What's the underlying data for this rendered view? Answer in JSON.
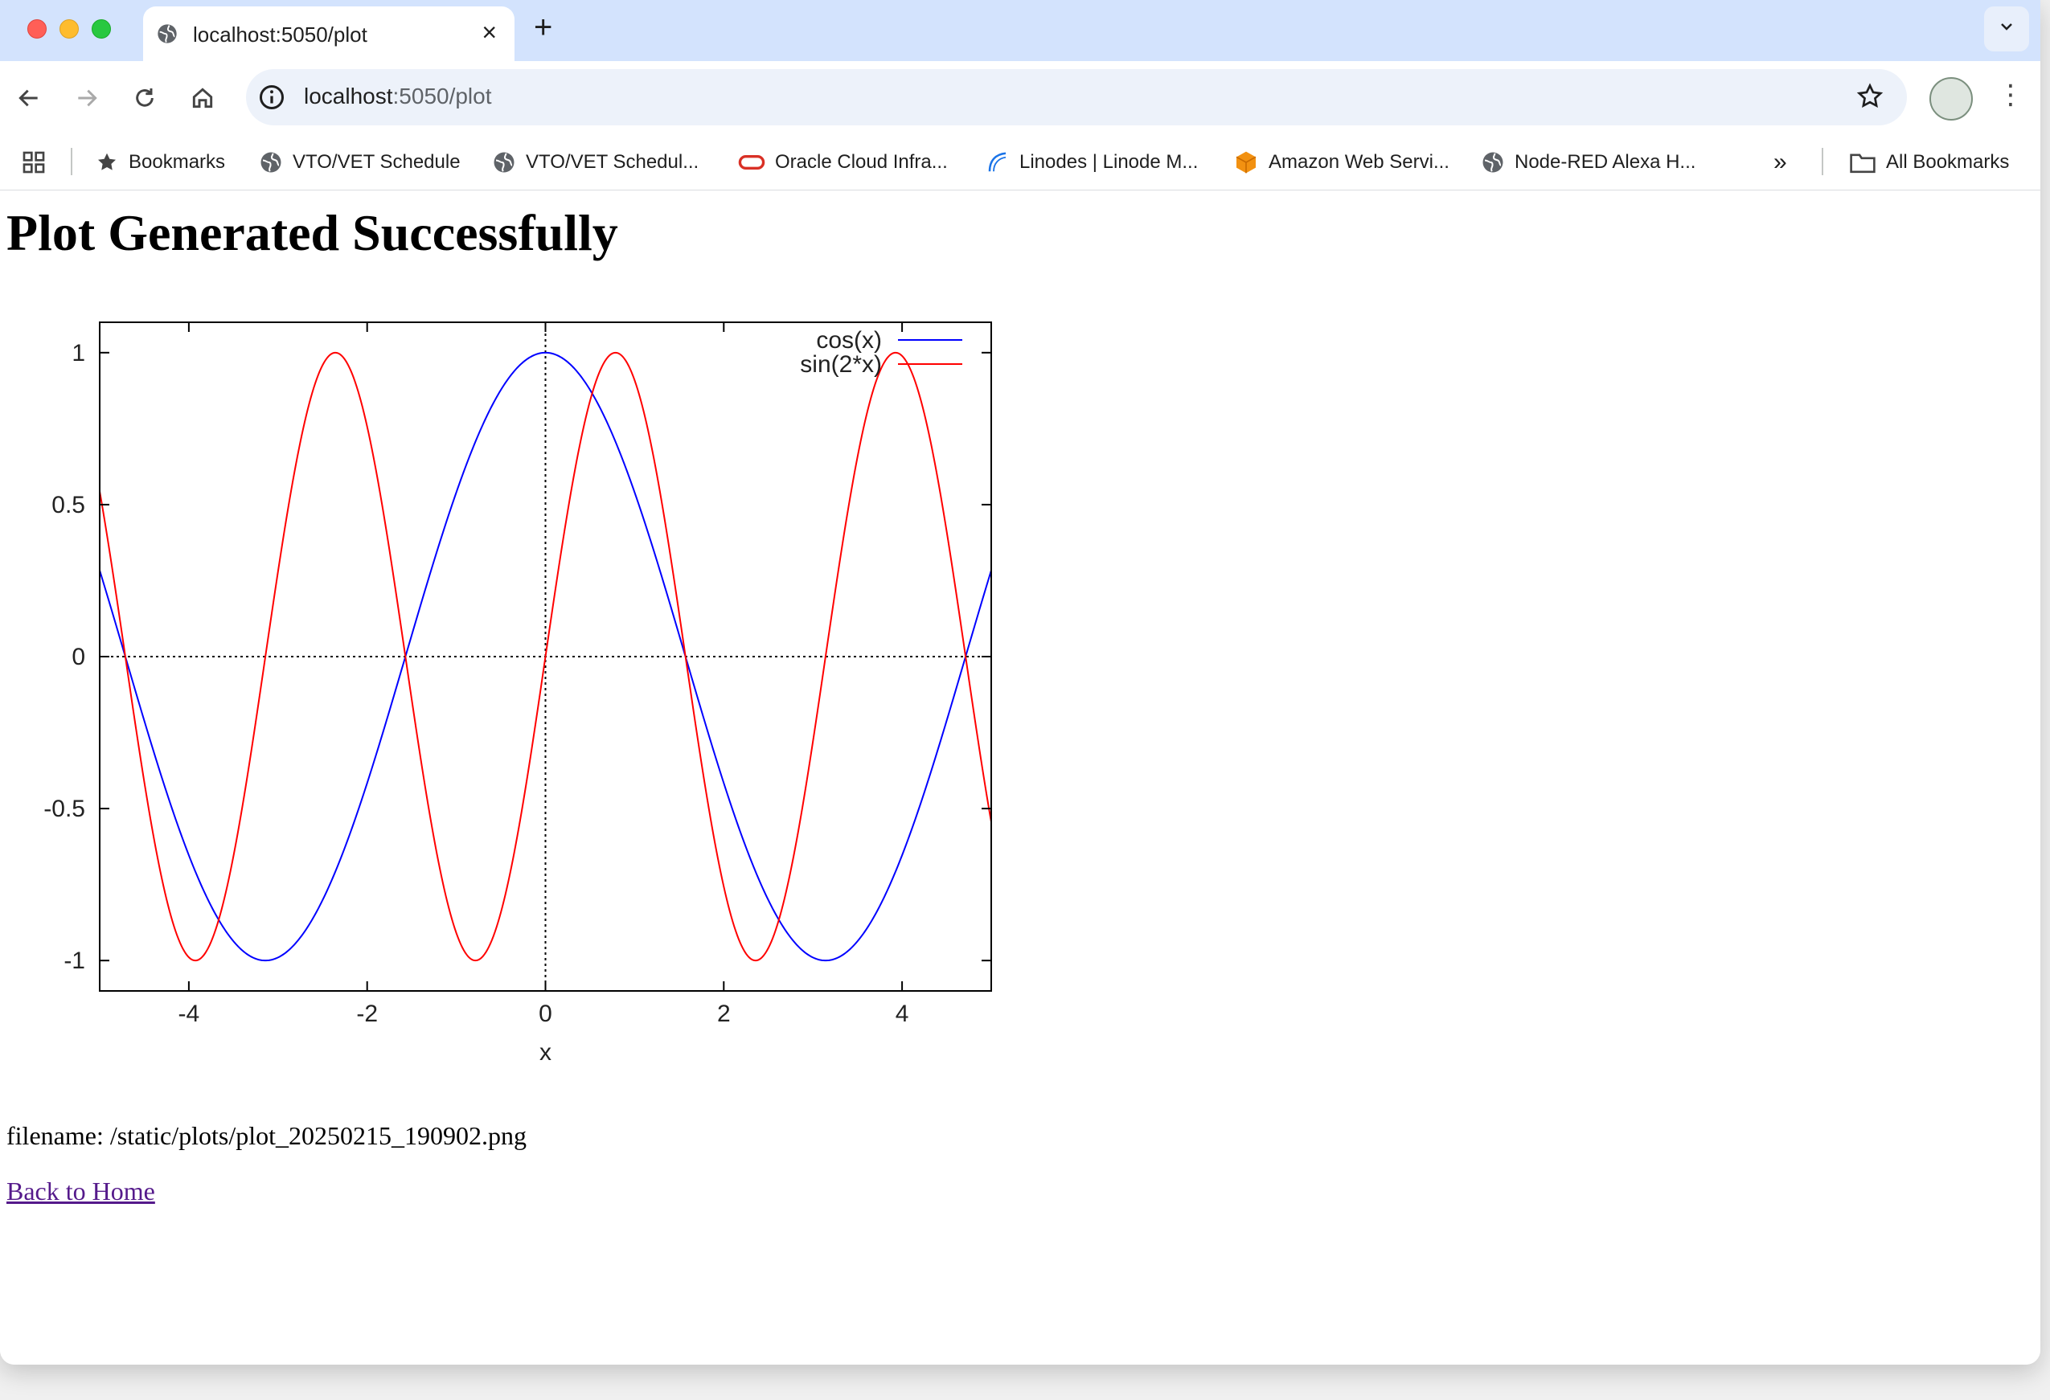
{
  "browser": {
    "tab_title": "localhost:5050/plot",
    "url_host": "localhost",
    "url_rest": ":5050/plot",
    "bookmarks": [
      {
        "label": "Bookmarks",
        "icon": "star-icon"
      },
      {
        "label": "VTO/VET Schedule",
        "icon": "globe-icon"
      },
      {
        "label": "VTO/VET Schedul...",
        "icon": "globe-icon"
      },
      {
        "label": "Oracle Cloud Infra...",
        "icon": "oracle-icon"
      },
      {
        "label": "Linodes | Linode M...",
        "icon": "linode-icon"
      },
      {
        "label": "Amazon Web Servi...",
        "icon": "aws-cube-icon"
      },
      {
        "label": "Node-RED Alexa H...",
        "icon": "globe-icon"
      }
    ],
    "overflow_label": "»",
    "all_bookmarks": "All Bookmarks"
  },
  "page": {
    "heading": "Plot Generated Successfully",
    "filename_text": "filename: /static/plots/plot_20250215_190902.png",
    "back_link": "Back to Home"
  },
  "chart_data": {
    "type": "line",
    "xlabel": "x",
    "ylabel": "",
    "xlim": [
      -5,
      5
    ],
    "ylim": [
      -1.1,
      1.1
    ],
    "xticks": [
      -4,
      -2,
      0,
      2,
      4
    ],
    "yticks": [
      -1,
      -0.5,
      0,
      0.5,
      1
    ],
    "xtick_labels": [
      "-4",
      "-2",
      "0",
      "2",
      "4"
    ],
    "ytick_labels": [
      "-1",
      "-0.5",
      "0",
      "0.5",
      "1"
    ],
    "legend_position": "top-right",
    "zero_axes": "dotted",
    "series": [
      {
        "name": "cos(x)",
        "color": "#0000ff",
        "x_samples": [
          -5,
          -4,
          -3.14,
          -2,
          -1,
          0,
          1,
          2,
          3.14,
          4,
          5
        ],
        "y_samples": [
          0.284,
          -0.654,
          -1,
          -0.416,
          0.54,
          1,
          0.54,
          -0.416,
          -1,
          -0.654,
          0.284
        ]
      },
      {
        "name": "sin(2*x)",
        "color": "#ff0000",
        "x_samples": [
          -5,
          -4.71,
          -3.93,
          -3.14,
          -2.36,
          -1.57,
          -0.79,
          0,
          0.79,
          1.57,
          2.36,
          3.14,
          3.93,
          4.71,
          5
        ],
        "y_samples": [
          0.544,
          0,
          -1,
          0,
          1,
          0,
          -1,
          0,
          1,
          0,
          -1,
          0,
          1,
          0,
          -0.544
        ]
      }
    ]
  }
}
